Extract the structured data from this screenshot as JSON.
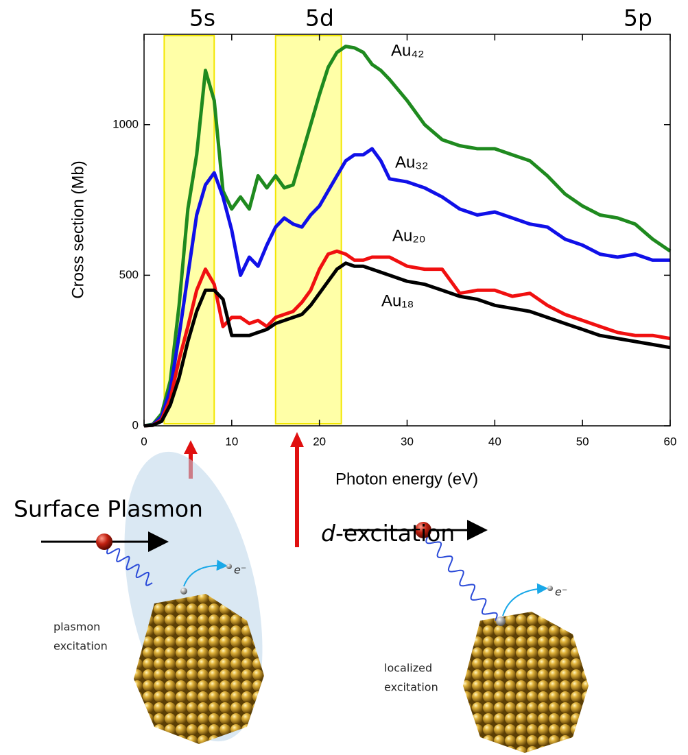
{
  "chart_data": {
    "type": "line",
    "x_label": "Photon energy (eV)",
    "y_label": "Cross section (Mb)",
    "xlim": [
      0,
      60
    ],
    "ylim": [
      0,
      1300
    ],
    "xticks": [
      0,
      10,
      20,
      30,
      40,
      50,
      60
    ],
    "yticks": [
      0,
      500,
      1000
    ],
    "x": [
      0,
      1,
      2,
      3,
      4,
      5,
      6,
      7,
      8,
      9,
      10,
      11,
      12,
      13,
      14,
      15,
      16,
      17,
      18,
      19,
      20,
      21,
      22,
      23,
      24,
      25,
      26,
      27,
      28,
      30,
      32,
      34,
      36,
      38,
      40,
      42,
      44,
      46,
      48,
      50,
      52,
      54,
      56,
      58,
      60
    ],
    "series": [
      {
        "name": "Au₄₂",
        "color": "#1f8a1f",
        "values": [
          0,
          5,
          40,
          150,
          400,
          720,
          900,
          1180,
          1080,
          780,
          720,
          760,
          720,
          830,
          790,
          830,
          790,
          800,
          900,
          1000,
          1100,
          1190,
          1240,
          1260,
          1255,
          1240,
          1200,
          1180,
          1150,
          1080,
          1000,
          950,
          930,
          920,
          920,
          900,
          880,
          830,
          770,
          730,
          700,
          690,
          670,
          620,
          580
        ]
      },
      {
        "name": "Au₃₂",
        "color": "#1010e8",
        "values": [
          0,
          3,
          30,
          120,
          300,
          500,
          700,
          800,
          840,
          760,
          650,
          500,
          560,
          530,
          600,
          660,
          690,
          670,
          660,
          700,
          730,
          780,
          830,
          880,
          900,
          900,
          920,
          880,
          820,
          810,
          790,
          760,
          720,
          700,
          710,
          690,
          670,
          660,
          620,
          600,
          570,
          560,
          570,
          550,
          550
        ]
      },
      {
        "name": "Au₂₀",
        "color": "#f01010",
        "values": [
          0,
          2,
          20,
          90,
          220,
          330,
          450,
          520,
          470,
          330,
          360,
          360,
          340,
          350,
          330,
          360,
          370,
          380,
          410,
          450,
          520,
          570,
          580,
          570,
          550,
          550,
          560,
          560,
          560,
          530,
          520,
          520,
          440,
          450,
          450,
          430,
          440,
          400,
          370,
          350,
          330,
          310,
          300,
          300,
          290
        ]
      },
      {
        "name": "Au₁₈",
        "color": "#000000",
        "values": [
          0,
          2,
          15,
          70,
          160,
          280,
          380,
          450,
          450,
          420,
          300,
          300,
          300,
          310,
          320,
          340,
          350,
          360,
          370,
          400,
          440,
          480,
          520,
          540,
          530,
          530,
          520,
          510,
          500,
          480,
          470,
          450,
          430,
          420,
          400,
          390,
          380,
          360,
          340,
          320,
          300,
          290,
          280,
          270,
          260
        ]
      }
    ],
    "shells": [
      {
        "label": "5s",
        "xlim": [
          2.3,
          8
        ]
      },
      {
        "label": "5d",
        "xlim": [
          15,
          22.5
        ]
      },
      {
        "label": "5p"
      }
    ]
  },
  "illustrations": {
    "plasmon": {
      "title": "Surface Plasmon",
      "caption": [
        "plasmon",
        "excitation"
      ],
      "electron": "e⁻"
    },
    "d_excitation": {
      "title": "d-excitation",
      "caption": [
        "localized",
        "excitation"
      ],
      "electron": "e⁻"
    }
  }
}
